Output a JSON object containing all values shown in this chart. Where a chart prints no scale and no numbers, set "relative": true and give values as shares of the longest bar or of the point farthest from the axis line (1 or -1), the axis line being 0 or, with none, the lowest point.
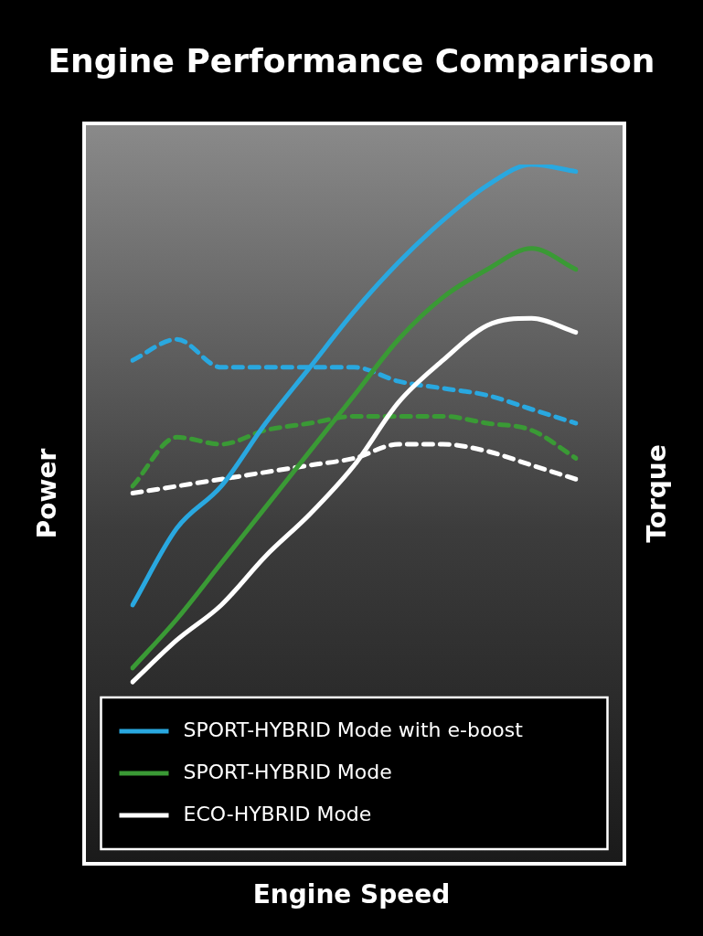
{
  "chart_data": {
    "type": "line",
    "title": "Engine Performance Comparison",
    "xlabel": "Engine Speed",
    "ylabel": "Power",
    "y2label": "Torque",
    "relative": true,
    "legend": "bottom",
    "marker": "none",
    "categories": [
      null,
      null,
      null,
      null,
      null,
      null,
      null,
      null,
      null,
      null,
      null
    ],
    "series": [
      {
        "name": "SPORT-HYBRID Mode with e-boost",
        "color": "#29a8e0",
        "line_style": "solid",
        "values": [
          0.37,
          0.48,
          0.54,
          0.63,
          0.71,
          0.79,
          0.86,
          0.92,
          0.97,
          1.0,
          0.99
        ]
      },
      {
        "name": "SPORT-HYBRID Mode",
        "color": "#3a9a35",
        "line_style": "solid",
        "values": [
          0.28,
          0.35,
          0.43,
          0.51,
          0.59,
          0.67,
          0.75,
          0.81,
          0.85,
          0.88,
          0.85
        ]
      },
      {
        "name": "ECO-HYBRID Mode",
        "color": "#ffffff",
        "line_style": "solid",
        "values": [
          0.26,
          0.32,
          0.37,
          0.44,
          0.5,
          0.57,
          0.66,
          0.72,
          0.77,
          0.78,
          0.76
        ]
      },
      {
        "color": "#29a8e0",
        "line_style": "dashed",
        "values": [
          0.72,
          0.75,
          0.71,
          0.71,
          0.71,
          0.71,
          0.69,
          0.68,
          0.67,
          0.65,
          0.63
        ]
      },
      {
        "color": "#3a9a35",
        "line_style": "dashed",
        "values": [
          0.54,
          0.61,
          0.6,
          0.62,
          0.63,
          0.64,
          0.64,
          0.64,
          0.63,
          0.62,
          0.58
        ]
      },
      {
        "color": "#ffffff",
        "line_style": "dashed",
        "values": [
          0.53,
          0.54,
          0.55,
          0.56,
          0.57,
          0.58,
          0.6,
          0.6,
          0.59,
          0.57,
          0.55
        ]
      }
    ]
  }
}
